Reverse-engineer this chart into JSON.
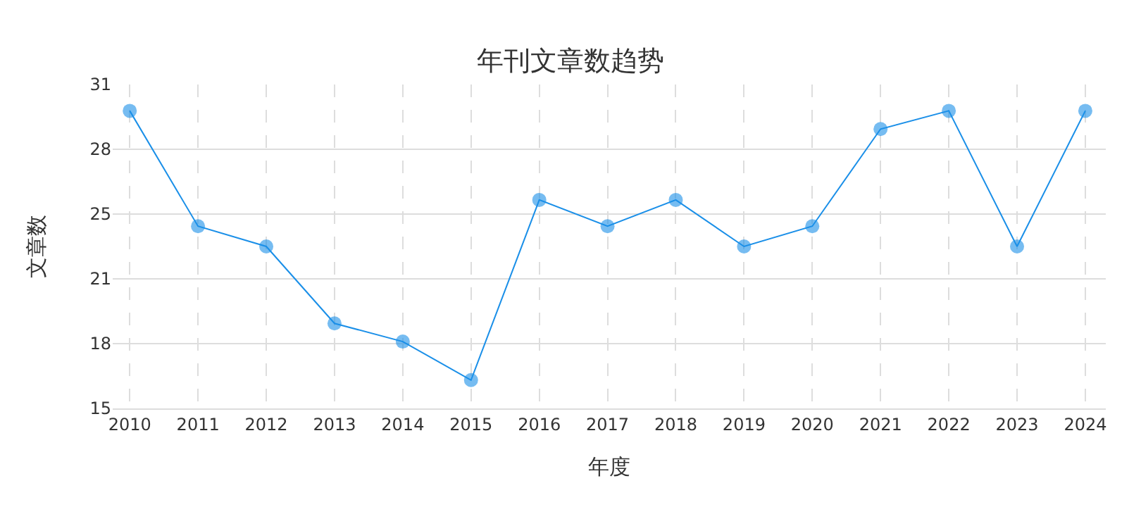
{
  "chart_data": {
    "type": "line",
    "title": "年刊文章数趋势",
    "xlabel": "年度",
    "ylabel": "文章数",
    "categories": [
      "2010",
      "2011",
      "2012",
      "2013",
      "2014",
      "2015",
      "2016",
      "2017",
      "2018",
      "2019",
      "2020",
      "2021",
      "2022",
      "2023",
      "2024"
    ],
    "series": [
      {
        "color": "#1a8fe8",
        "values": [
          29.7,
          24,
          23,
          19.2,
          18.3,
          16.4,
          25.3,
          24,
          25.3,
          23,
          24,
          28.8,
          29.7,
          23,
          29.7
        ]
      }
    ],
    "ylim": [
      15,
      31
    ],
    "yticks": [
      15,
      {
        "value": 18.2,
        "label": "18"
      },
      {
        "value": 21.4,
        "label": "21"
      },
      {
        "value": 24.6,
        "label": "25"
      },
      {
        "value": 27.8,
        "label": "28"
      },
      31
    ],
    "grid": true,
    "marker": "circle",
    "line_style": "solid"
  }
}
